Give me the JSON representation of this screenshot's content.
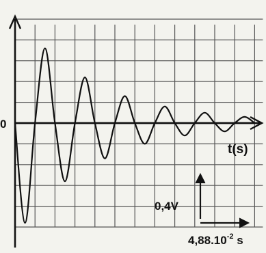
{
  "chart_data": {
    "type": "line",
    "title": "",
    "xlabel": "t(s)",
    "ylabel": "",
    "origin_label": "0",
    "grid": true,
    "scale": {
      "vertical_label": "0,4V",
      "horizontal_base": "4,88.10",
      "horizontal_exp": "-2",
      "horizontal_unit": " s"
    },
    "units": {
      "x": "div",
      "y": "div"
    },
    "xlim": [
      0,
      12
    ],
    "ylim": [
      -5,
      5
    ],
    "series": [
      {
        "x": [
          0,
          0.5,
          1.0,
          1.5,
          2.0,
          2.5,
          3.0,
          3.5,
          4.0,
          4.5,
          5.0,
          5.5,
          6.0,
          6.5,
          7.0,
          7.5,
          8.0,
          8.5,
          9.0,
          9.5,
          10.0,
          10.5,
          11.0,
          11.5,
          12.0
        ],
        "y": [
          0,
          -4.8,
          0,
          3.6,
          0,
          -2.8,
          0,
          2.2,
          0,
          -1.7,
          0,
          1.3,
          0,
          -1.0,
          0,
          0.8,
          0,
          -0.6,
          0,
          0.5,
          0,
          -0.4,
          0,
          0.3,
          0
        ]
      }
    ]
  }
}
